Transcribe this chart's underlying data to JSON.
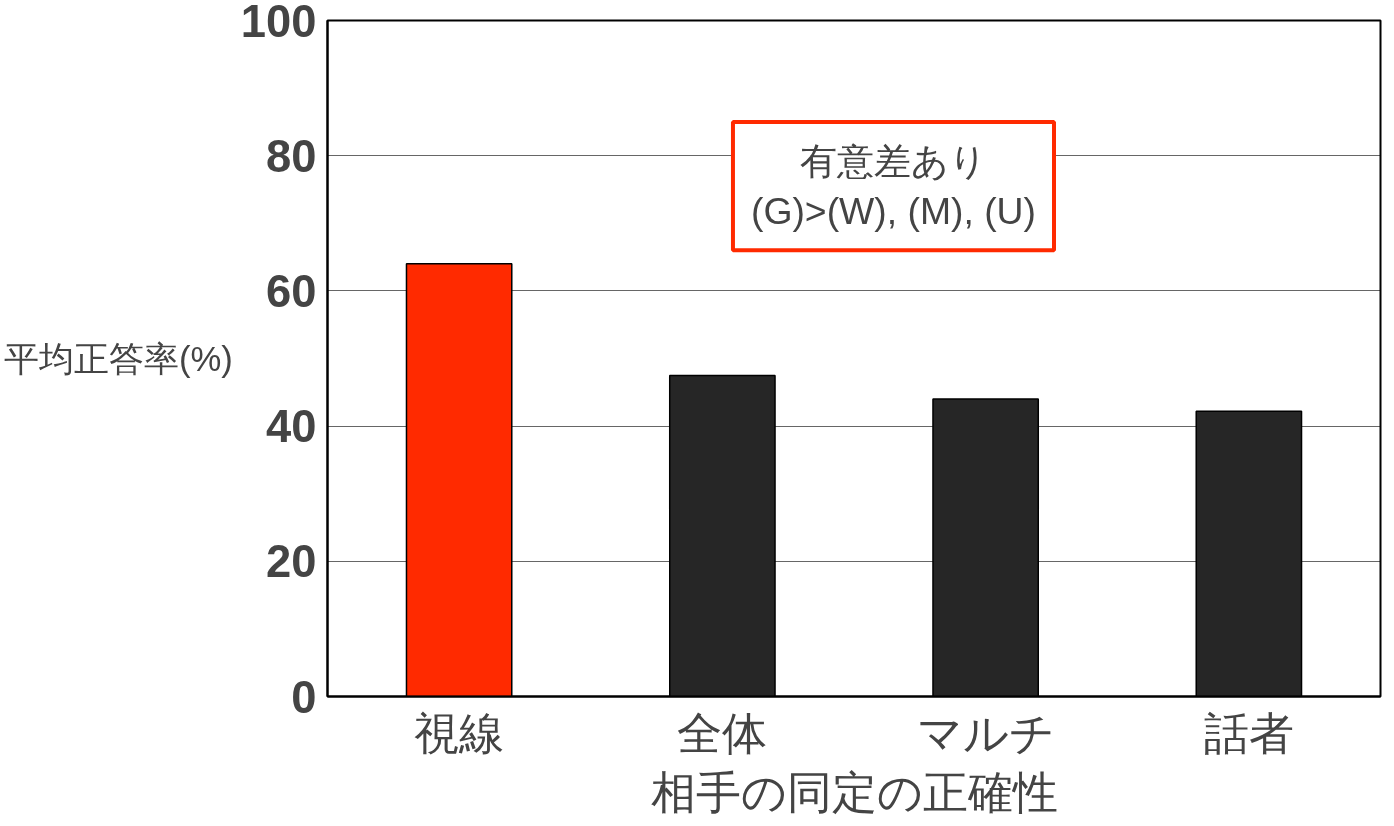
{
  "chart_data": {
    "type": "bar",
    "categories": [
      "視線",
      "全体",
      "マルチ",
      "話者"
    ],
    "values": [
      64,
      47.5,
      44,
      42.2
    ],
    "colors": [
      "#ff2a00",
      "#262626",
      "#262626",
      "#262626"
    ],
    "xlabel": "相手の同定の正確性",
    "ylabel": "平均正答率(%)",
    "ylim": [
      0,
      100
    ],
    "yticks": [
      0,
      20,
      40,
      60,
      80,
      100
    ],
    "grid": "y",
    "annotations": [
      "有意差あり\n(G)>(W), (M), (U)"
    ]
  }
}
